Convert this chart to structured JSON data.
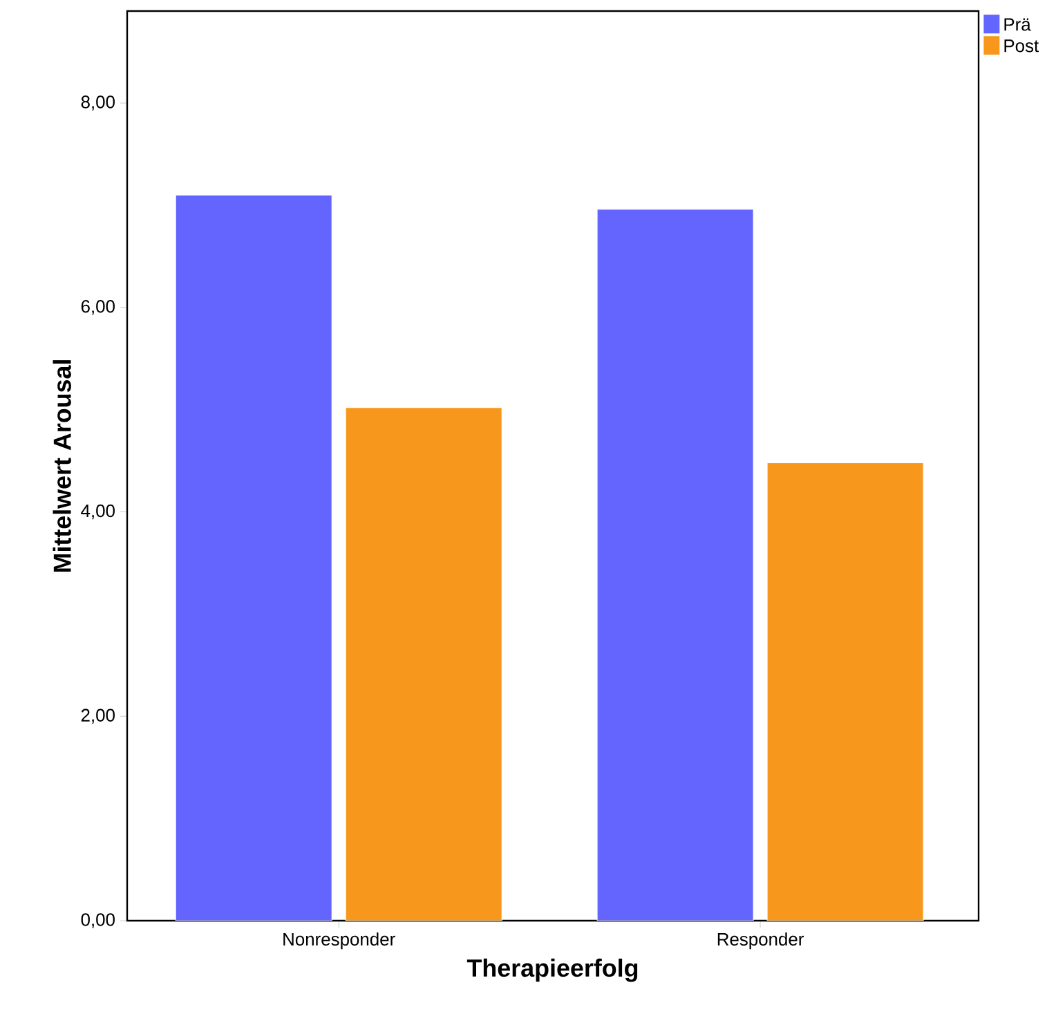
{
  "chart_data": {
    "type": "bar",
    "xlabel": "Therapieerfolg",
    "ylabel": "Mittelwert Arousal",
    "categories": [
      "Nonresponder",
      "Responder"
    ],
    "series": [
      {
        "name": "Prä",
        "color": "#6464fe",
        "values": [
          7.1,
          6.96
        ]
      },
      {
        "name": "Post",
        "color": "#f7981d",
        "values": [
          5.02,
          4.48
        ]
      }
    ],
    "ylim": [
      0,
      8.9
    ],
    "yticks": [
      {
        "value": 0,
        "label": "0,00"
      },
      {
        "value": 2,
        "label": "2,00"
      },
      {
        "value": 4,
        "label": "4,00"
      },
      {
        "value": 6,
        "label": "6,00"
      },
      {
        "value": 8,
        "label": "8,00"
      }
    ],
    "legend": "top right",
    "grid": false
  }
}
